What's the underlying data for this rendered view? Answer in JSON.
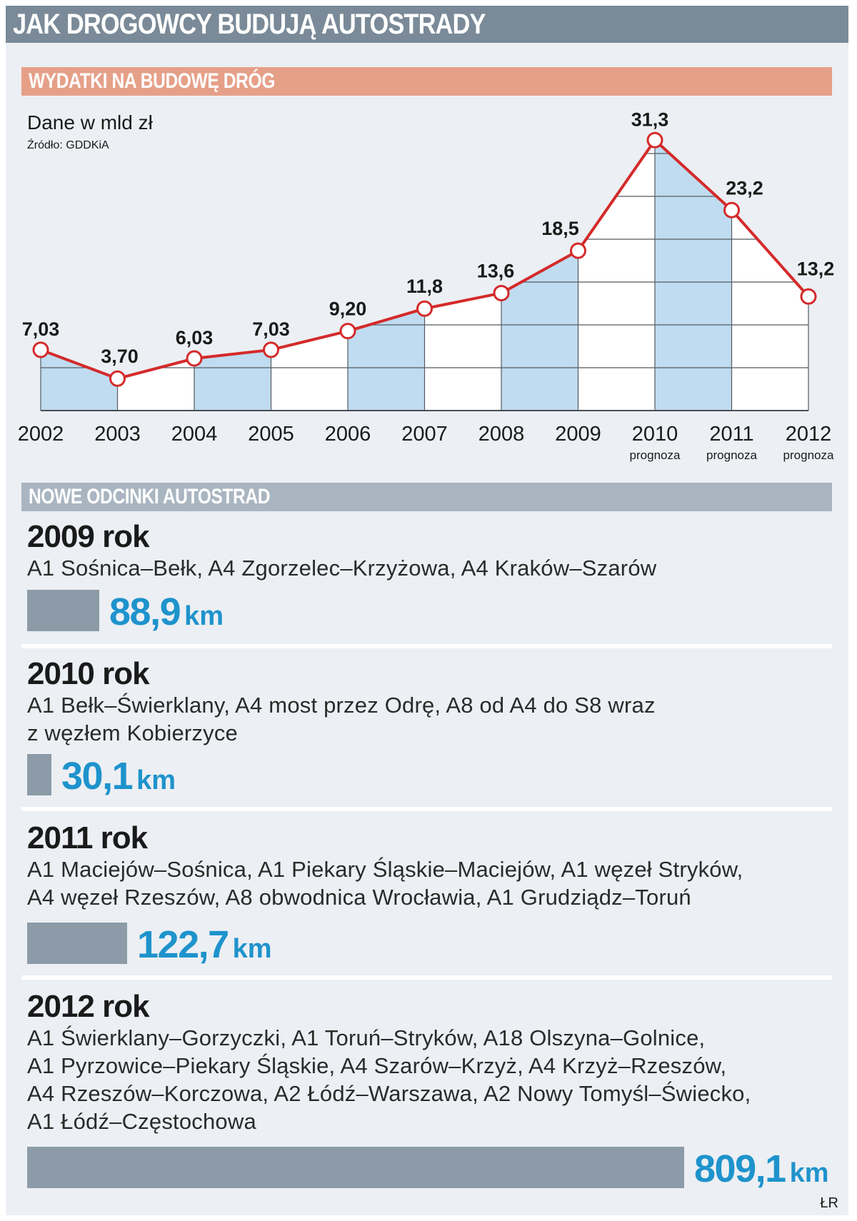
{
  "title": "JAK DROGOWCY BUDUJĄ AUTOSTRADY",
  "spending": {
    "heading": "WYDATKI NA BUDOWĘ DRÓG",
    "units": "Dane w mld zł",
    "source": "Źródło: GDDKiA"
  },
  "chart_data": {
    "type": "line",
    "title": "WYDATKI NA BUDOWĘ DRÓG",
    "ylabel": "Dane w mld zł",
    "categories": [
      "2002",
      "2003",
      "2004",
      "2005",
      "2006",
      "2007",
      "2008",
      "2009",
      "2010",
      "2011",
      "2012"
    ],
    "values": [
      7.03,
      3.7,
      6.03,
      7.03,
      9.2,
      11.8,
      13.6,
      18.5,
      31.3,
      23.2,
      13.2
    ],
    "data_labels": [
      "7,03",
      "3,70",
      "6,03",
      "7,03",
      "9,20",
      "11,8",
      "13,6",
      "18,5",
      "31,3",
      "23,2",
      "13,2"
    ],
    "x_sublabels": [
      "",
      "",
      "",
      "",
      "",
      "",
      "",
      "",
      "prognoza",
      "prognoza",
      "prognoza"
    ],
    "ylim": [
      0,
      32
    ],
    "grid": true,
    "line_color": "#d42a2a",
    "fill_color": "#bfdcf0"
  },
  "sections": {
    "heading": "NOWE ODCINKI AUTOSTRAD",
    "max_km": 809.1,
    "items": [
      {
        "year": "2009 rok",
        "lines": [
          "A1 Sośnica–Bełk, A4 Zgorzelec–Krzyżowa, A4 Kraków–Szarów"
        ],
        "km_value": "88,9",
        "km_unit": "km",
        "km": 88.9
      },
      {
        "year": "2010 rok",
        "lines": [
          "A1 Bełk–Świerklany, A4 most przez Odrę, A8 od A4 do S8 wraz",
          "z węzłem Kobierzyce"
        ],
        "km_value": "30,1",
        "km_unit": "km",
        "km": 30.1
      },
      {
        "year": "2011 rok",
        "lines": [
          "A1 Maciejów–Sośnica, A1 Piekary Śląskie–Maciejów, A1 węzeł Stryków,",
          "A4 węzeł Rzeszów, A8 obwodnica Wrocławia, A1 Grudziądz–Toruń"
        ],
        "km_value": "122,7",
        "km_unit": "km",
        "km": 122.7
      },
      {
        "year": "2012 rok",
        "lines": [
          "A1 Świerklany–Gorzyczki, A1 Toruń–Stryków, A18 Olszyna–Golnice,",
          "A1 Pyrzowice–Piekary Śląskie, A4 Szarów–Krzyż, A4 Krzyż–Rzeszów,",
          "A4 Rzeszów–Korczowa, A2 Łódź–Warszawa, A2 Nowy Tomyśl–Świecko,",
          "A1 Łódź–Częstochowa"
        ],
        "km_value": "809,1",
        "km_unit": "km",
        "km": 809.1
      }
    ]
  },
  "credit": "ŁR",
  "colors": {
    "title_bar": "#7a8a98",
    "spending_bar": "#e6a088",
    "sections_bar": "#a9b5c0",
    "km_bar": "#8c9ba7",
    "km_text": "#1e93cc"
  }
}
